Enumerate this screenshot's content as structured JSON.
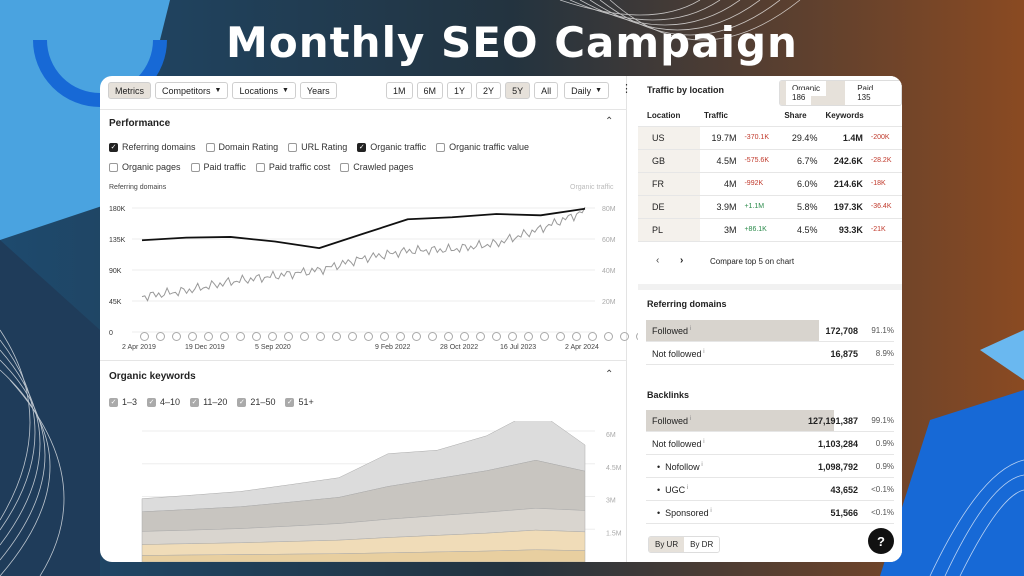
{
  "page_title": "Monthly SEO Campaign",
  "colors": {
    "accent_blue": "#1769d6",
    "panel_bg": "#ffffff",
    "active_bg": "#e6e1da"
  },
  "toolbar": {
    "tabs": [
      "Metrics",
      "Competitors",
      "Locations",
      "Years"
    ],
    "ranges": [
      "1M",
      "6M",
      "1Y",
      "2Y",
      "5Y",
      "All"
    ],
    "active_range": "5Y",
    "interval": "Daily",
    "more_icon": "more-vertical-icon"
  },
  "performance": {
    "title": "Performance",
    "options_row1": [
      {
        "label": "Referring domains",
        "checked": true
      },
      {
        "label": "Domain Rating",
        "checked": false
      },
      {
        "label": "URL Rating",
        "checked": false
      },
      {
        "label": "Organic traffic",
        "checked": true
      },
      {
        "label": "Organic traffic value",
        "checked": false
      }
    ],
    "options_row2": [
      {
        "label": "Organic pages",
        "checked": false
      },
      {
        "label": "Paid traffic",
        "checked": false
      },
      {
        "label": "Paid traffic cost",
        "checked": false
      },
      {
        "label": "Crawled pages",
        "checked": false
      }
    ],
    "left_axis_label": "Referring domains",
    "right_axis_label": "Organic traffic",
    "left_ticks": [
      "180K",
      "135K",
      "90K",
      "45K",
      "0"
    ],
    "right_ticks": [
      "80M",
      "60M",
      "40M",
      "20M"
    ],
    "dates": [
      "2 Apr 2019",
      "19 Dec 2019",
      "5 Sep 2020",
      "9 Feb 2022",
      "28 Oct 2022",
      "16 Jul 2023",
      "2 Apr 2024"
    ]
  },
  "chart_data": [
    {
      "type": "line",
      "title": "Performance",
      "series": [
        {
          "name": "Referring domains",
          "x": [
            "2019-04",
            "2019-10",
            "2020-04",
            "2020-10",
            "2021-04",
            "2021-10",
            "2022-04",
            "2022-10",
            "2023-04",
            "2023-10",
            "2024-04"
          ],
          "values": [
            140000,
            144000,
            145000,
            138000,
            128000,
            150000,
            172000,
            175000,
            180000,
            178000,
            188000
          ]
        },
        {
          "name": "Organic traffic",
          "x": [
            "2019-04",
            "2019-10",
            "2020-04",
            "2020-10",
            "2021-04",
            "2021-10",
            "2022-04",
            "2022-10",
            "2023-04",
            "2023-10",
            "2024-04"
          ],
          "values": [
            24000000,
            28000000,
            34000000,
            38000000,
            42000000,
            50000000,
            55000000,
            56000000,
            60000000,
            70000000,
            82000000
          ]
        }
      ],
      "ylim_left": [
        0,
        180000
      ],
      "ylim_right": [
        0,
        80000000
      ]
    },
    {
      "type": "area",
      "title": "Organic keywords",
      "series": [
        {
          "name": "1-3",
          "values": [
            300000,
            320000,
            340000,
            360000,
            380000,
            420000,
            460000,
            500000,
            560000,
            520000
          ]
        },
        {
          "name": "4-10",
          "values": [
            500000,
            520000,
            540000,
            580000,
            620000,
            700000,
            760000,
            820000,
            900000,
            860000
          ]
        },
        {
          "name": "11-20",
          "values": [
            600000,
            620000,
            650000,
            700000,
            760000,
            840000,
            900000,
            960000,
            1000000,
            980000
          ]
        },
        {
          "name": "21-50",
          "values": [
            900000,
            950000,
            1000000,
            1100000,
            1200000,
            1500000,
            1700000,
            1900000,
            2200000,
            1800000
          ]
        },
        {
          "name": "51+",
          "values": [
            600000,
            650000,
            700000,
            800000,
            900000,
            1500000,
            1300000,
            1600000,
            2300000,
            1200000
          ]
        }
      ],
      "ylim": [
        0,
        6000000
      ]
    }
  ],
  "keywords": {
    "title": "Organic keywords",
    "options": [
      {
        "label": "1–3",
        "checked": true
      },
      {
        "label": "4–10",
        "checked": true
      },
      {
        "label": "11–20",
        "checked": true
      },
      {
        "label": "21–50",
        "checked": true
      },
      {
        "label": "51+",
        "checked": true
      }
    ],
    "right_ticks": [
      "6M",
      "4.5M",
      "3M",
      "1.5M"
    ]
  },
  "traffic_by_location": {
    "title": "Traffic by location",
    "organic_label": "Organic",
    "organic_count": "186",
    "paid_label": "Paid",
    "paid_count": "135",
    "headers": [
      "Location",
      "Traffic",
      "Share",
      "Keywords"
    ],
    "rows": [
      {
        "loc": "US",
        "traffic": "19.7M",
        "tchange": "-370.1K",
        "tdir": "neg",
        "share": "29.4%",
        "kw": "1.4M",
        "kchange": "-200K"
      },
      {
        "loc": "GB",
        "traffic": "4.5M",
        "tchange": "-575.6K",
        "tdir": "neg",
        "share": "6.7%",
        "kw": "242.6K",
        "kchange": "-28.2K"
      },
      {
        "loc": "FR",
        "traffic": "4M",
        "tchange": "-992K",
        "tdir": "neg",
        "share": "6.0%",
        "kw": "214.6K",
        "kchange": "-18K"
      },
      {
        "loc": "DE",
        "traffic": "3.9M",
        "tchange": "+1.1M",
        "tdir": "pos",
        "share": "5.8%",
        "kw": "197.3K",
        "kchange": "-36.4K"
      },
      {
        "loc": "PL",
        "traffic": "3M",
        "tchange": "+86.1K",
        "tdir": "pos",
        "share": "4.5%",
        "kw": "93.3K",
        "kchange": "-21K"
      }
    ],
    "compare_label": "Compare top 5 on chart"
  },
  "referring_domains": {
    "title": "Referring domains",
    "rows": [
      {
        "label": "Followed",
        "value": "172,708",
        "pct": "91.1%",
        "fill": 0.911
      },
      {
        "label": "Not followed",
        "value": "16,875",
        "pct": "8.9%",
        "fill": 0
      }
    ]
  },
  "backlinks": {
    "title": "Backlinks",
    "rows": [
      {
        "label": "Followed",
        "value": "127,191,387",
        "pct": "99.1%",
        "fill": 0.991
      },
      {
        "label": "Not followed",
        "value": "1,103,284",
        "pct": "0.9%",
        "fill": 0
      },
      {
        "label": "Nofollow",
        "value": "1,098,792",
        "pct": "0.9%",
        "fill": 0
      },
      {
        "label": "UGC",
        "value": "43,652",
        "pct": "<0.1%",
        "fill": 0
      },
      {
        "label": "Sponsored",
        "value": "51,566",
        "pct": "<0.1%",
        "fill": 0
      }
    ],
    "by_ur": "By UR",
    "by_dr": "By DR"
  },
  "help_label": "?"
}
